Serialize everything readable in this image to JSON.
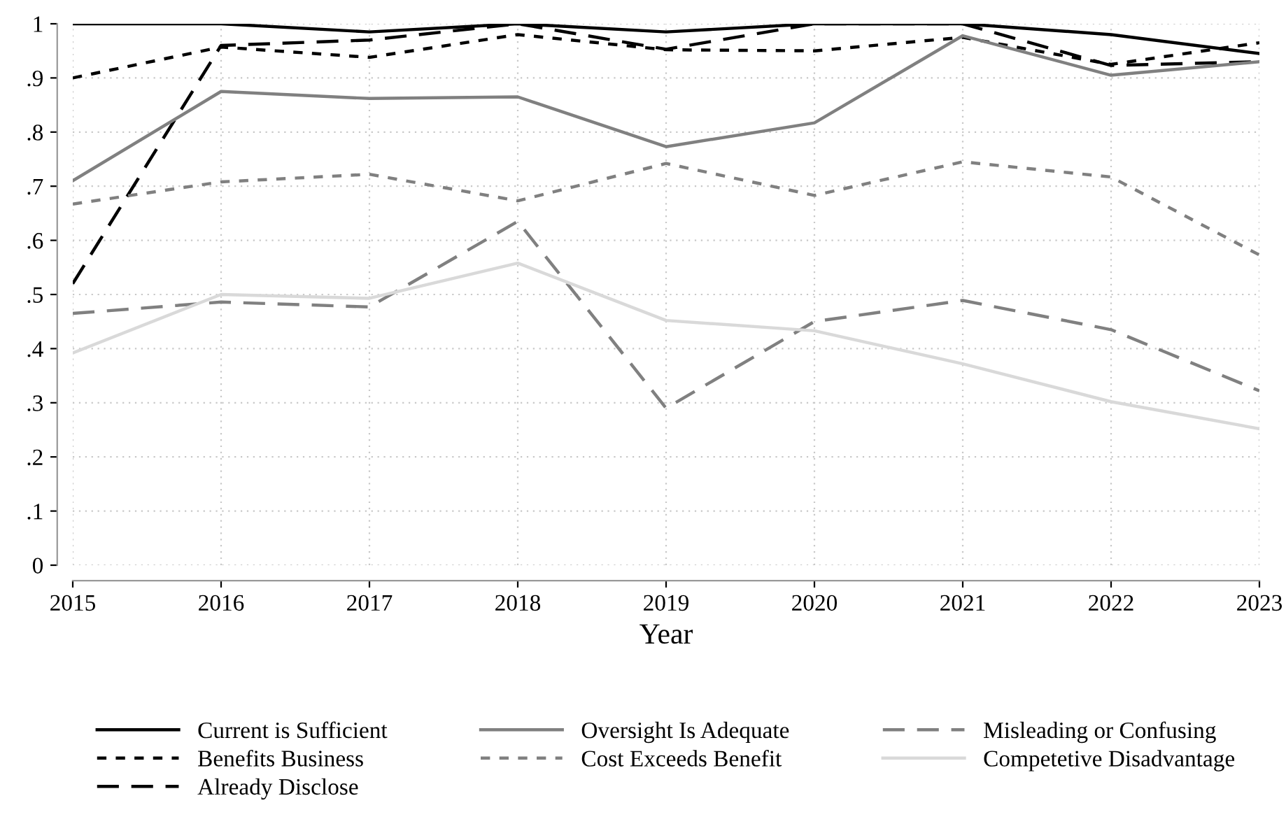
{
  "chart_data": {
    "type": "line",
    "xlabel": "Year",
    "x": [
      2015,
      2016,
      2017,
      2018,
      2019,
      2020,
      2021,
      2022,
      2023
    ],
    "xlim": [
      2015,
      2023
    ],
    "xticks": [
      2015,
      2016,
      2017,
      2018,
      2019,
      2020,
      2021,
      2022,
      2023
    ],
    "ylim": [
      0,
      1
    ],
    "yticks": [
      0,
      {
        "value": 0.1,
        "label": ".1"
      },
      {
        "value": 0.2,
        "label": ".2"
      },
      {
        "value": 0.3,
        "label": ".3"
      },
      {
        "value": 0.4,
        "label": ".4"
      },
      {
        "value": 0.5,
        "label": ".5"
      },
      {
        "value": 0.6,
        "label": ".6"
      },
      {
        "value": 0.7,
        "label": ".7"
      },
      {
        "value": 0.8,
        "label": ".8"
      },
      {
        "value": 0.9,
        "label": ".9"
      },
      1
    ],
    "grid": true,
    "legend": "bottom",
    "marker": "none",
    "series": [
      {
        "name": "Current is Sufficient",
        "color": "#000000",
        "line_style": "solid",
        "values": [
          1.0,
          1.0,
          0.985,
          1.0,
          0.985,
          1.0,
          1.0,
          0.98,
          0.945
        ]
      },
      {
        "name": "Benefits Business",
        "color": "#000000",
        "line_style": "dotted",
        "values": [
          0.9,
          0.957,
          0.938,
          0.98,
          0.952,
          0.95,
          0.975,
          0.925,
          0.965
        ]
      },
      {
        "name": "Already Disclose",
        "color": "#000000",
        "line_style": "dashed",
        "values": [
          0.52,
          0.96,
          0.97,
          1.0,
          0.953,
          1.0,
          1.0,
          0.923,
          0.93
        ]
      },
      {
        "name": "Oversight Is Adequate",
        "color": "#808080",
        "line_style": "solid",
        "values": [
          0.71,
          0.875,
          0.862,
          0.865,
          0.773,
          0.817,
          0.978,
          0.905,
          0.93
        ]
      },
      {
        "name": "Cost Exceeds Benefit",
        "color": "#808080",
        "line_style": "dotted",
        "values": [
          0.667,
          0.708,
          0.722,
          0.673,
          0.742,
          0.683,
          0.745,
          0.717,
          0.573
        ]
      },
      {
        "name": "Misleading or Confusing",
        "color": "#808080",
        "line_style": "dashed",
        "values": [
          0.465,
          0.486,
          0.477,
          0.635,
          0.29,
          0.45,
          0.489,
          0.435,
          0.322
        ]
      },
      {
        "name": "Competetive Disadvantage",
        "color": "#d9d9d9",
        "line_style": "solid",
        "values": [
          0.392,
          0.5,
          0.493,
          0.558,
          0.452,
          0.433,
          0.372,
          0.302,
          0.252
        ]
      }
    ]
  }
}
